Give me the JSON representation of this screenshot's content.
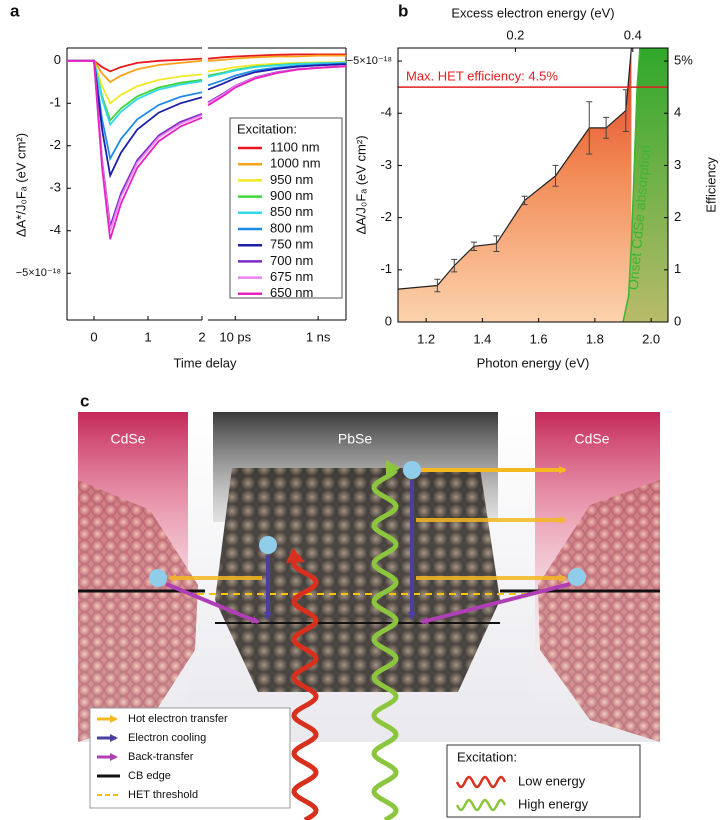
{
  "chart_data": [
    {
      "type": "line",
      "panel": "a",
      "y_label": "ΔA*/J₀Fₐ (eV cm²)",
      "x_label": "Time delay",
      "xlim": [
        -0.5,
        2
      ],
      "xticks": [
        0,
        1,
        2
      ],
      "x2lim": [
        2.2,
        4700
      ],
      "x2_log": true,
      "x2ticks": [
        {
          "value": 10,
          "label": "10 ps"
        },
        {
          "value": 1000,
          "label": "1 ns"
        }
      ],
      "ylim": [
        -6.1,
        0.3
      ],
      "yticks": [
        0,
        -1,
        -2,
        -3,
        -4,
        {
          "value": -5,
          "label": "−5×10⁻¹⁸"
        }
      ],
      "legend_title": "Excitation:",
      "legend": "right",
      "x": [
        -0.5,
        0,
        0.15,
        0.3,
        0.5,
        0.8,
        1.2,
        1.6,
        2
      ],
      "x2": [
        2.2,
        5,
        10,
        30,
        100,
        300,
        1000,
        4700
      ],
      "series": [
        {
          "name": "1100 nm",
          "color": "#e8191c",
          "values": [
            0,
            0,
            -0.15,
            -0.25,
            -0.15,
            -0.05,
            0,
            0.02,
            0.05
          ],
          "values2": [
            0.05,
            0.08,
            0.1,
            0.12,
            0.14,
            0.15,
            0.15,
            0.15
          ]
        },
        {
          "name": "1000 nm",
          "color": "#f7a21b",
          "values": [
            0,
            0,
            -0.3,
            -0.5,
            -0.35,
            -0.2,
            -0.1,
            -0.05,
            0
          ],
          "values2": [
            0,
            0.02,
            0.05,
            0.08,
            0.1,
            0.1,
            0.12,
            0.12
          ]
        },
        {
          "name": "950 nm",
          "color": "#f2e827",
          "values": [
            0,
            0,
            -0.6,
            -1,
            -0.8,
            -0.6,
            -0.45,
            -0.37,
            -0.32
          ],
          "values2": [
            -0.25,
            -0.2,
            -0.15,
            -0.1,
            -0.07,
            -0.05,
            -0.04,
            -0.03
          ]
        },
        {
          "name": "900 nm",
          "color": "#3fd53a",
          "values": [
            0,
            0,
            -0.84,
            -1.4,
            -1.12,
            -0.84,
            -0.63,
            -0.52,
            -0.45
          ],
          "values2": [
            -0.35,
            -0.28,
            -0.21,
            -0.14,
            -0.1,
            -0.07,
            -0.06,
            -0.04
          ]
        },
        {
          "name": "850 nm",
          "color": "#35d8e8",
          "values": [
            0,
            0,
            -0.9,
            -1.5,
            -1.2,
            -0.9,
            -0.68,
            -0.56,
            -0.48
          ],
          "values2": [
            -0.38,
            -0.3,
            -0.23,
            -0.15,
            -0.11,
            -0.08,
            -0.06,
            -0.05
          ]
        },
        {
          "name": "800 nm",
          "color": "#1e8ce6",
          "values": [
            0,
            0,
            -1.38,
            -2.3,
            -1.84,
            -1.38,
            -1.04,
            -0.85,
            -0.74
          ],
          "values2": [
            -0.58,
            -0.46,
            -0.35,
            -0.23,
            -0.16,
            -0.12,
            -0.09,
            -0.07
          ]
        },
        {
          "name": "750 nm",
          "color": "#1c1fa8",
          "values": [
            0,
            0,
            -1.62,
            -2.7,
            -2.16,
            -1.62,
            -1.22,
            -1,
            -0.86
          ],
          "values2": [
            -0.68,
            -0.54,
            -0.41,
            -0.27,
            -0.19,
            -0.14,
            -0.11,
            -0.08
          ]
        },
        {
          "name": "700 nm",
          "color": "#7a2bc7",
          "values": [
            0,
            0,
            -2.34,
            -3.9,
            -3.12,
            -2.34,
            -1.76,
            -1.44,
            -1.25
          ],
          "values2": [
            -0.98,
            -0.78,
            -0.59,
            -0.39,
            -0.27,
            -0.2,
            -0.16,
            -0.12
          ]
        },
        {
          "name": "675 nm",
          "color": "#ee82ee",
          "values": [
            0,
            0,
            -2.4,
            -4,
            -3.2,
            -2.4,
            -1.8,
            -1.48,
            -1.28
          ],
          "values2": [
            -1,
            -0.8,
            -0.6,
            -0.4,
            -0.28,
            -0.2,
            -0.16,
            -0.12
          ]
        },
        {
          "name": "650 nm",
          "color": "#e524c0",
          "values": [
            0,
            0,
            -2.52,
            -4.2,
            -3.36,
            -2.52,
            -1.89,
            -1.55,
            -1.34
          ],
          "values2": [
            -1.05,
            -0.84,
            -0.63,
            -0.42,
            -0.29,
            -0.21,
            -0.17,
            -0.13
          ]
        }
      ]
    },
    {
      "type": "area",
      "panel": "b",
      "x_label": "Photon energy (eV)",
      "x2_label": "Excess electron energy (eV)",
      "y_label": "ΔA/J₀Fₐ (eV cm²)",
      "y2_label": "Efficiency",
      "xlim": [
        1.1,
        2.06
      ],
      "xticks": [
        1.2,
        1.4,
        1.6,
        1.8,
        {
          "value": 2,
          "label": "2.0"
        }
      ],
      "x2lim": [
        0,
        0.46
      ],
      "x2ticks": [
        0.2,
        0.4
      ],
      "ylim": [
        0,
        -5.25
      ],
      "yticks": [
        0,
        -1,
        -2,
        -3,
        -4,
        {
          "value": -5,
          "label": "−5×10⁻¹⁸"
        }
      ],
      "y2lim": [
        0,
        5.25
      ],
      "y2ticks": [
        0,
        1,
        2,
        3,
        4,
        {
          "value": 5,
          "label": "5%"
        }
      ],
      "series": [
        {
          "color": "#222222",
          "x": [
            1.1,
            1.24,
            1.3,
            1.37,
            1.45,
            1.55,
            1.66,
            1.78,
            1.84,
            1.91,
            1.93
          ],
          "values": [
            -0.63,
            -0.7,
            -1.08,
            -1.45,
            -1.5,
            -2.33,
            -2.8,
            -3.72,
            -3.72,
            -4.05,
            -5.25
          ],
          "errors": [
            null,
            0.12,
            0.12,
            0.08,
            0.15,
            0.08,
            0.2,
            0.5,
            0.2,
            0.4,
            null
          ]
        },
        {
          "color": "#3cb52f",
          "axis": "y2",
          "x": [
            1.9,
            1.92,
            1.93,
            1.94,
            1.95,
            1.96
          ],
          "values": [
            0,
            0.5,
            1.5,
            3,
            4.5,
            5.25
          ]
        }
      ],
      "annotations": [
        {
          "text": "Max. HET efficiency: 4.5%",
          "value": 4.5,
          "axis": "y2",
          "color": "#e02020"
        },
        {
          "text": "Onset CdSe absorption",
          "color": "#3cb52f"
        }
      ]
    }
  ],
  "diagram": {
    "panel": "c",
    "labels": [
      "CdSe",
      "PbSe",
      "CdSe"
    ],
    "legend": [
      "Hot electron transfer",
      "Electron cooling",
      "Back-transfer",
      "CB edge",
      "HET threshold"
    ],
    "excitation_title": "Excitation:",
    "excitation": [
      "Low energy",
      "High energy"
    ]
  }
}
